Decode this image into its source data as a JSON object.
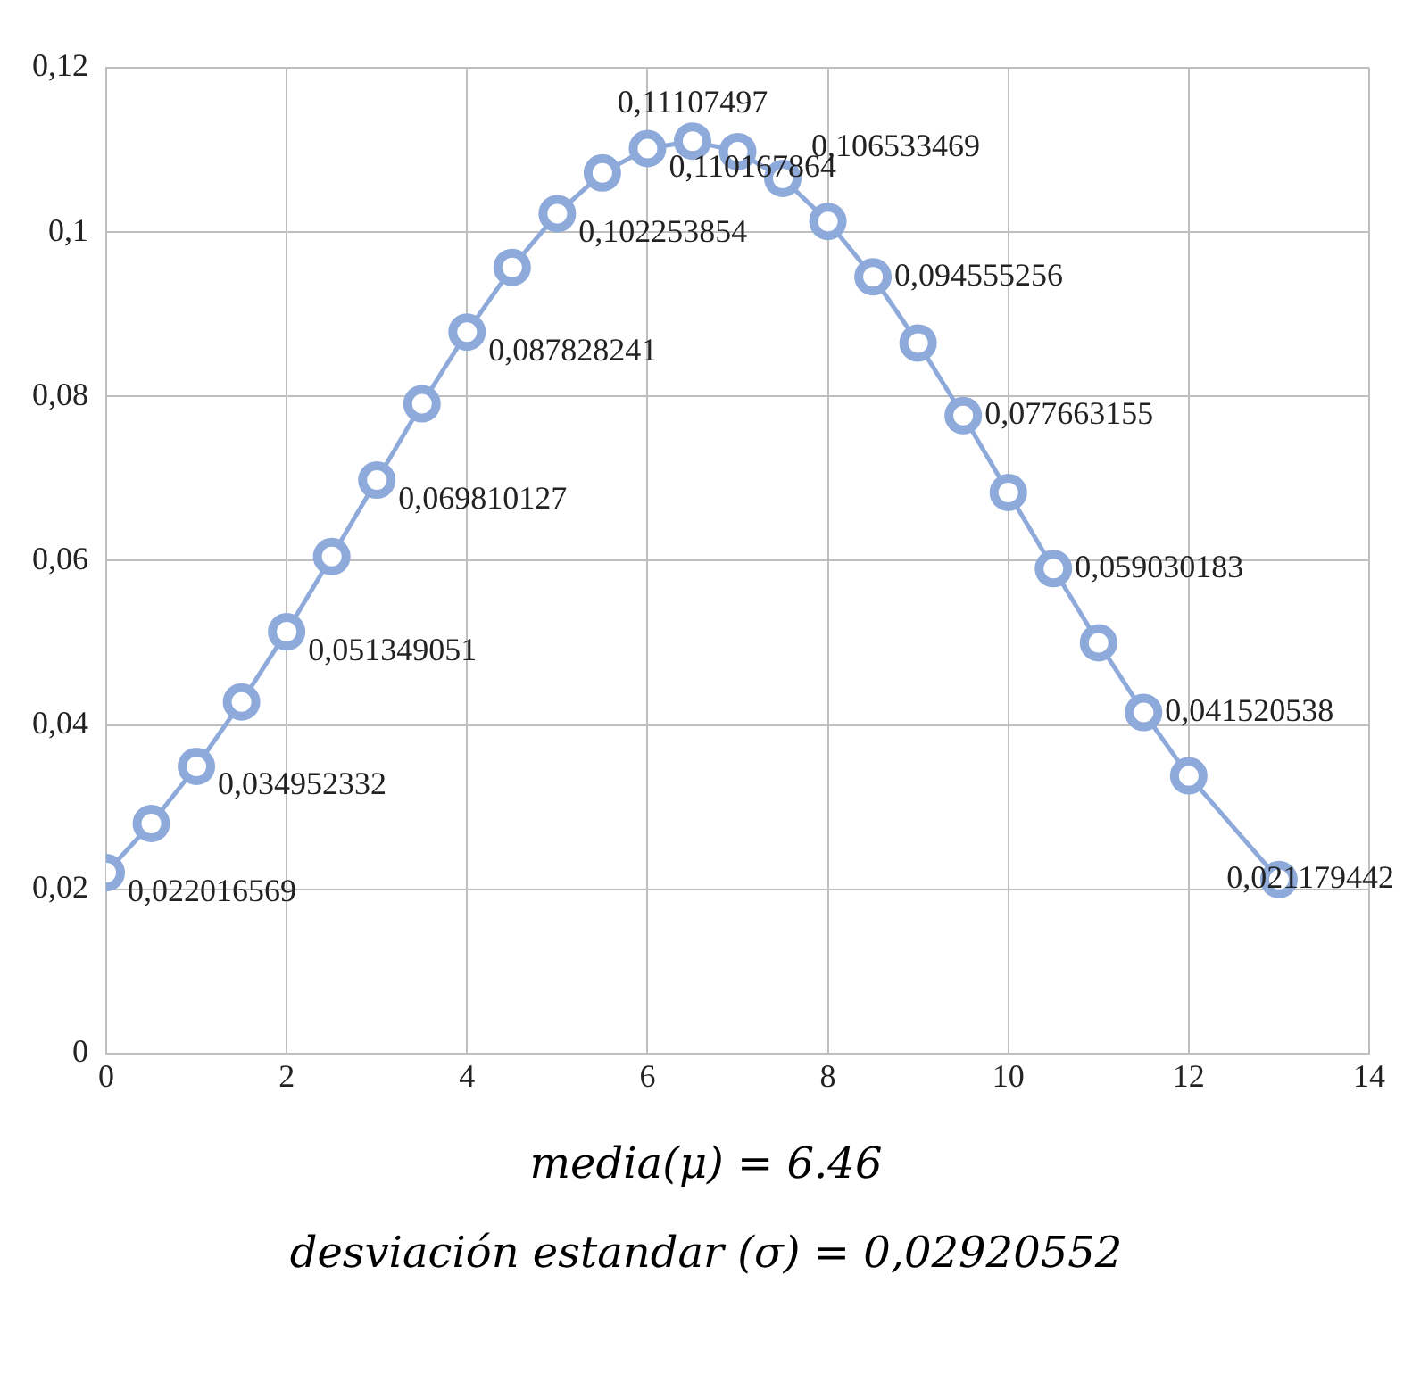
{
  "chart_data": {
    "type": "line",
    "x": [
      0,
      0.5,
      1,
      1.5,
      2,
      2.5,
      3,
      3.5,
      4,
      4.5,
      5,
      5.5,
      6,
      6.5,
      7,
      7.5,
      8,
      8.5,
      9,
      9.5,
      10,
      10.5,
      11,
      11.5,
      12,
      13
    ],
    "values": [
      0.022016569,
      0.028,
      0.034952332,
      0.0428,
      0.051349051,
      0.0605,
      0.069810127,
      0.0791,
      0.087828241,
      0.0957,
      0.102253854,
      0.1072,
      0.110167864,
      0.11107497,
      0.1098,
      0.106533469,
      0.1013,
      0.094555256,
      0.0865,
      0.077663155,
      0.0683,
      0.059030183,
      0.05,
      0.041520538,
      0.0338,
      0.021179442
    ],
    "value_labels": [
      "0,022016569",
      null,
      "0,034952332",
      null,
      "0,051349051",
      null,
      "0,069810127",
      null,
      "0,087828241",
      null,
      "0,102253854",
      null,
      "0,110167864",
      "0,11107497",
      null,
      "0,106533469",
      null,
      "0,094555256",
      null,
      "0,077663155",
      null,
      "0,059030183",
      null,
      "0,041520538",
      null,
      "0,021179442"
    ],
    "color": "#8eaadb",
    "marker": "circle",
    "line_style": "solid",
    "grid": true,
    "legend": false,
    "xlim": [
      0,
      14
    ],
    "xticks": [
      0,
      2,
      4,
      6,
      8,
      10,
      12,
      14
    ],
    "ylim": [
      0,
      0.12
    ],
    "yticks": [
      0,
      {
        "value": 0.02,
        "label": "0,02"
      },
      {
        "value": 0.04,
        "label": "0,04"
      },
      {
        "value": 0.06,
        "label": "0,06"
      },
      {
        "value": 0.08,
        "label": "0,08"
      },
      {
        "value": 0.1,
        "label": "0,1"
      },
      {
        "value": 0.12,
        "label": "0,12"
      }
    ],
    "annotations": [
      "media(μ) = 6.46",
      "desviación estandar (σ) = 0,02920552"
    ]
  }
}
